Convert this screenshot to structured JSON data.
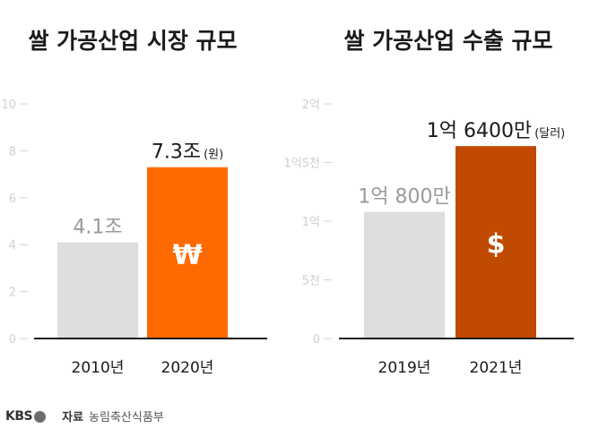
{
  "chart_data": [
    {
      "type": "bar",
      "title": "쌀 가공산업 시장 규모",
      "categories": [
        "2010년",
        "2020년"
      ],
      "values": [
        4.1,
        7.3
      ],
      "value_labels": [
        "4.1조",
        "7.3조"
      ],
      "unit_note": "(원)",
      "ylim": [
        0,
        10
      ],
      "yticks": [
        "0",
        "2",
        "4",
        "6",
        "8",
        "10"
      ],
      "ytick_values": [
        0,
        2,
        4,
        6,
        8,
        10
      ],
      "colors": [
        "#dedede",
        "#ff6a00"
      ],
      "label_colors": [
        "#9a9a9a",
        "#1a1a1a"
      ],
      "icon": "won-sign-icon",
      "icon_glyph": "₩",
      "grid": false
    },
    {
      "type": "bar",
      "title": "쌀 가공산업 수출 규모",
      "categories": [
        "2019년",
        "2021년"
      ],
      "values": [
        10800,
        16400
      ],
      "value_labels": [
        "1억 800만",
        "1억 6400만"
      ],
      "unit_note": "(달러)",
      "ylim": [
        0,
        20000
      ],
      "yticks": [
        "0",
        "5천",
        "1억",
        "1억5천",
        "2억"
      ],
      "ytick_values": [
        0,
        5000,
        10000,
        15000,
        20000
      ],
      "colors": [
        "#dedede",
        "#bf4a00"
      ],
      "label_colors": [
        "#9a9a9a",
        "#1a1a1a"
      ],
      "icon": "dollar-sign-icon",
      "icon_glyph": "$",
      "grid": false
    }
  ],
  "footer": {
    "logo": "KBS",
    "source_label": "자료",
    "source_text": "농림축산식품부"
  }
}
